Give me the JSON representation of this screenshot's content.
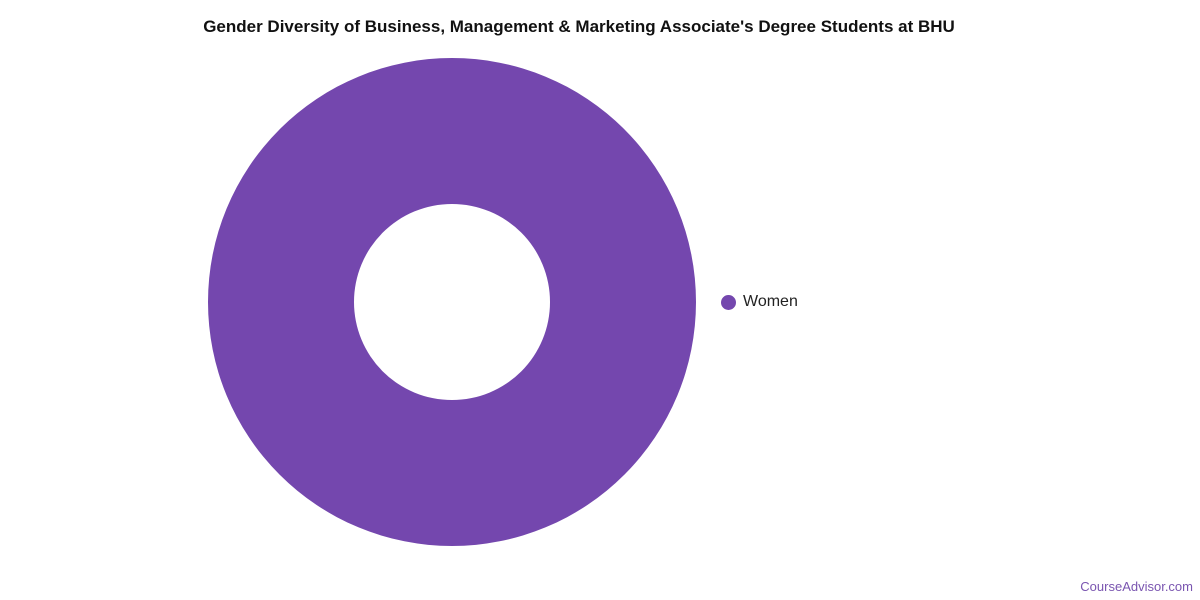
{
  "chart_data": {
    "type": "pie",
    "variant": "donut",
    "title": "Gender Diversity of Business, Management & Marketing Associate's Degree Students at BHU",
    "categories": [
      "Women"
    ],
    "values": [
      100
    ],
    "colors": [
      "#7447ae"
    ],
    "legend_position": "right"
  },
  "credit": "CourseAdvisor.com"
}
